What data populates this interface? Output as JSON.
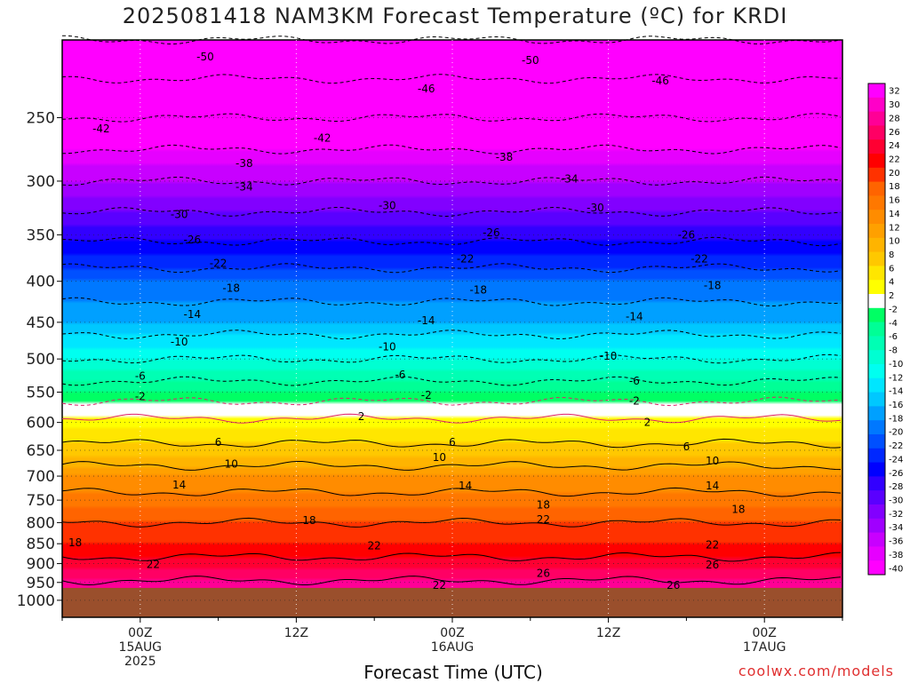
{
  "title": "2025081418 NAM3KM Forecast Temperature (ºC) for KRDI",
  "credit": "coolwx.com/models",
  "chart_data": {
    "type": "heatmap",
    "title": "2025081418 NAM3KM Forecast Temperature (ºC) for KRDI",
    "xlabel": "Forecast Time (UTC)",
    "ylabel": "",
    "x_ticks": [
      {
        "hours": 6,
        "lines": [
          "00Z",
          "15AUG",
          "2025"
        ]
      },
      {
        "hours": 18,
        "lines": [
          "12Z"
        ]
      },
      {
        "hours": 30,
        "lines": [
          "00Z",
          "16AUG"
        ]
      },
      {
        "hours": 42,
        "lines": [
          "12Z"
        ]
      },
      {
        "hours": 54,
        "lines": [
          "00Z",
          "17AUG"
        ]
      }
    ],
    "xlim_hours": [
      0,
      60
    ],
    "y_ticks": [
      250,
      300,
      350,
      400,
      450,
      500,
      550,
      600,
      650,
      700,
      750,
      800,
      850,
      900,
      950,
      1000
    ],
    "ylim_hpa": [
      200,
      1050
    ],
    "y_scale": "log",
    "surface_hpa": 965,
    "colorbar_labels": [
      "32",
      "30",
      "28",
      "26",
      "24",
      "22",
      "20",
      "18",
      "16",
      "14",
      "12",
      "10",
      "8",
      "6",
      "4",
      "2",
      "-2",
      "-4",
      "-6",
      "-8",
      "-10",
      "-12",
      "-14",
      "-16",
      "-18",
      "-20",
      "-22",
      "-24",
      "-26",
      "-28",
      "-30",
      "-32",
      "-34",
      "-36",
      "-38",
      "-40"
    ],
    "colorbar_colors": [
      "#ff00ff",
      "#ff00c8",
      "#ff0096",
      "#ff0064",
      "#ff0032",
      "#ff0000",
      "#ff3200",
      "#ff6400",
      "#ff7800",
      "#ff8c00",
      "#ffa000",
      "#ffb400",
      "#ffc800",
      "#ffe600",
      "#ffff00",
      "#ffffff",
      "#00ff64",
      "#00ff96",
      "#00ffb4",
      "#00ffd2",
      "#00fff0",
      "#00e6ff",
      "#00c8ff",
      "#00a0ff",
      "#0078ff",
      "#0050ff",
      "#0028ff",
      "#0000ff",
      "#3200ff",
      "#5a00ff",
      "#8200ff",
      "#a000ff",
      "#c800ff",
      "#e600ff",
      "#ff00ff"
    ],
    "temperature_profile": [
      {
        "hpa": 960,
        "t": 27
      },
      {
        "hpa": 900,
        "t": 23
      },
      {
        "hpa": 850,
        "t": 20
      },
      {
        "hpa": 800,
        "t": 18
      },
      {
        "hpa": 750,
        "t": 15
      },
      {
        "hpa": 700,
        "t": 12
      },
      {
        "hpa": 650,
        "t": 7
      },
      {
        "hpa": 600,
        "t": 3
      },
      {
        "hpa": 580,
        "t": 0
      },
      {
        "hpa": 550,
        "t": -4
      },
      {
        "hpa": 500,
        "t": -10
      },
      {
        "hpa": 450,
        "t": -16
      },
      {
        "hpa": 400,
        "t": -20
      },
      {
        "hpa": 350,
        "t": -27
      },
      {
        "hpa": 300,
        "t": -34
      },
      {
        "hpa": 250,
        "t": -42
      },
      {
        "hpa": 200,
        "t": -50
      }
    ],
    "contour_labels": [
      {
        "value": "-50",
        "hours": 11,
        "hpa": 210
      },
      {
        "value": "-50",
        "hours": 36,
        "hpa": 212
      },
      {
        "value": "-46",
        "hours": 28,
        "hpa": 230
      },
      {
        "value": "-46",
        "hours": 46,
        "hpa": 225
      },
      {
        "value": "-42",
        "hours": 3,
        "hpa": 258
      },
      {
        "value": "-42",
        "hours": 20,
        "hpa": 265
      },
      {
        "value": "-38",
        "hours": 14,
        "hpa": 285
      },
      {
        "value": "-38",
        "hours": 34,
        "hpa": 280
      },
      {
        "value": "-34",
        "hours": 14,
        "hpa": 305
      },
      {
        "value": "-34",
        "hours": 39,
        "hpa": 298
      },
      {
        "value": "-30",
        "hours": 9,
        "hpa": 330
      },
      {
        "value": "-30",
        "hours": 25,
        "hpa": 322
      },
      {
        "value": "-30",
        "hours": 41,
        "hpa": 324
      },
      {
        "value": "-26",
        "hours": 10,
        "hpa": 355
      },
      {
        "value": "-26",
        "hours": 33,
        "hpa": 348
      },
      {
        "value": "-26",
        "hours": 48,
        "hpa": 350
      },
      {
        "value": "-22",
        "hours": 12,
        "hpa": 380
      },
      {
        "value": "-22",
        "hours": 31,
        "hpa": 375
      },
      {
        "value": "-22",
        "hours": 49,
        "hpa": 375
      },
      {
        "value": "-18",
        "hours": 13,
        "hpa": 408
      },
      {
        "value": "-18",
        "hours": 32,
        "hpa": 410
      },
      {
        "value": "-18",
        "hours": 50,
        "hpa": 405
      },
      {
        "value": "-14",
        "hours": 10,
        "hpa": 440
      },
      {
        "value": "-14",
        "hours": 28,
        "hpa": 448
      },
      {
        "value": "-14",
        "hours": 44,
        "hpa": 443
      },
      {
        "value": "-10",
        "hours": 9,
        "hpa": 476
      },
      {
        "value": "-10",
        "hours": 25,
        "hpa": 483
      },
      {
        "value": "-10",
        "hours": 42,
        "hpa": 496
      },
      {
        "value": "-6",
        "hours": 6,
        "hpa": 525
      },
      {
        "value": "-6",
        "hours": 26,
        "hpa": 523
      },
      {
        "value": "-6",
        "hours": 44,
        "hpa": 533
      },
      {
        "value": "-2",
        "hours": 6,
        "hpa": 557
      },
      {
        "value": "-2",
        "hours": 28,
        "hpa": 555
      },
      {
        "value": "-2",
        "hours": 44,
        "hpa": 564
      },
      {
        "value": "2",
        "hours": 23,
        "hpa": 590
      },
      {
        "value": "2",
        "hours": 45,
        "hpa": 600
      },
      {
        "value": "6",
        "hours": 12,
        "hpa": 635
      },
      {
        "value": "6",
        "hours": 30,
        "hpa": 635
      },
      {
        "value": "6",
        "hours": 48,
        "hpa": 643
      },
      {
        "value": "10",
        "hours": 13,
        "hpa": 676
      },
      {
        "value": "10",
        "hours": 29,
        "hpa": 663
      },
      {
        "value": "10",
        "hours": 50,
        "hpa": 670
      },
      {
        "value": "14",
        "hours": 9,
        "hpa": 718
      },
      {
        "value": "14",
        "hours": 31,
        "hpa": 720
      },
      {
        "value": "14",
        "hours": 50,
        "hpa": 720
      },
      {
        "value": "18",
        "hours": 19,
        "hpa": 795
      },
      {
        "value": "18",
        "hours": 37,
        "hpa": 760
      },
      {
        "value": "18",
        "hours": 52,
        "hpa": 770
      },
      {
        "value": "18",
        "hours": 1,
        "hpa": 848
      },
      {
        "value": "22",
        "hours": 7,
        "hpa": 902
      },
      {
        "value": "22",
        "hours": 24,
        "hpa": 855
      },
      {
        "value": "22",
        "hours": 37,
        "hpa": 793
      },
      {
        "value": "22",
        "hours": 50,
        "hpa": 853
      },
      {
        "value": "22",
        "hours": 29,
        "hpa": 958
      },
      {
        "value": "26",
        "hours": 37,
        "hpa": 925
      },
      {
        "value": "26",
        "hours": 50,
        "hpa": 903
      },
      {
        "value": "26",
        "hours": 47,
        "hpa": 958
      }
    ]
  }
}
